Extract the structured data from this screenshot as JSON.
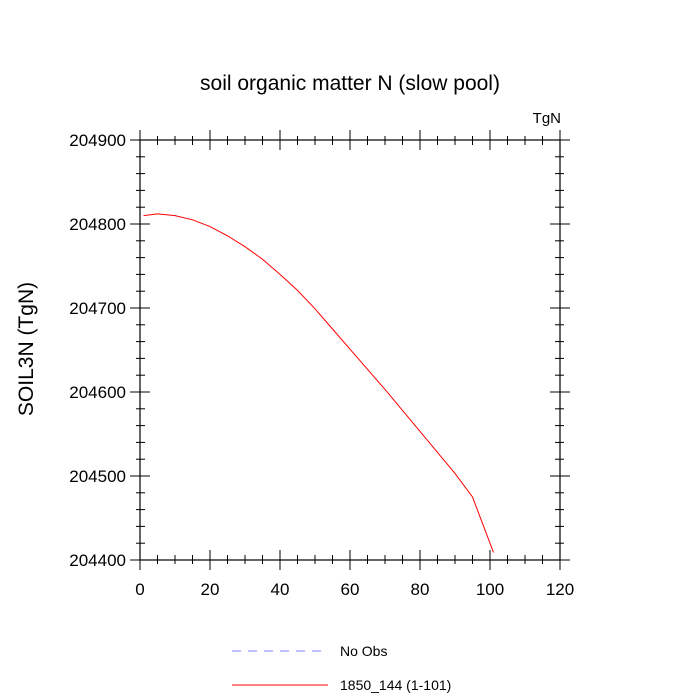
{
  "chart_data": {
    "type": "line",
    "title": "soil organic matter N (slow pool)",
    "units_label": "TgN",
    "xlabel": "",
    "ylabel": "SOIL3N  (TgN)",
    "xlim": [
      0,
      120
    ],
    "ylim": [
      204400,
      204900
    ],
    "x_ticks": [
      0,
      20,
      40,
      60,
      80,
      100,
      120
    ],
    "y_ticks": [
      204400,
      204500,
      204600,
      204700,
      204800,
      204900
    ],
    "grid": false,
    "legend_position": "bottom-center",
    "series": [
      {
        "name": "No Obs",
        "color": "#8080ff",
        "dash": true,
        "x": [],
        "y": []
      },
      {
        "name": "1850_144 (1-101)",
        "color": "#ff0000",
        "dash": false,
        "x": [
          1,
          5,
          10,
          15,
          20,
          25,
          30,
          35,
          40,
          45,
          50,
          55,
          60,
          65,
          70,
          75,
          80,
          85,
          90,
          95,
          101
        ],
        "y": [
          204810,
          204812,
          204810,
          204805,
          204797,
          204786,
          204773,
          204758,
          204740,
          204721,
          204699,
          204675,
          204651,
          204627,
          204603,
          204578,
          204553,
          204528,
          204503,
          204475,
          204409
        ]
      }
    ]
  }
}
